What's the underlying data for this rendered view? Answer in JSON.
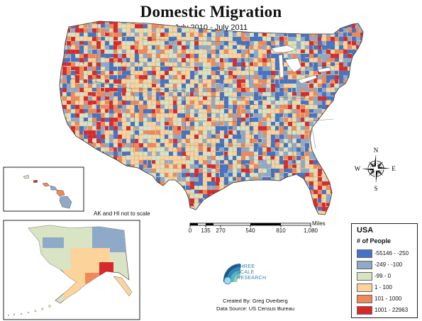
{
  "title": "Domestic Migration",
  "subtitle": "July 2010 - July 2011",
  "inset_note": "AK and HI not to scale",
  "scale": {
    "ticks": [
      "0",
      "135",
      "270",
      "540",
      "810",
      "1,080"
    ],
    "unit": "Miles"
  },
  "legend": {
    "title": "USA",
    "subtitle": "# of People",
    "items": [
      {
        "label": "-55146 - -250",
        "color": "#4472c4"
      },
      {
        "label": "-249 - -100",
        "color": "#8fa9c9"
      },
      {
        "label": "-99 - 0",
        "color": "#d8e4c4"
      },
      {
        "label": "1 - 100",
        "color": "#fbd39b"
      },
      {
        "label": "101 - 1000",
        "color": "#f08859"
      },
      {
        "label": "1001 - 22963",
        "color": "#d9282c"
      }
    ]
  },
  "compass": {
    "n": "N",
    "s": "S",
    "e": "E",
    "w": "W"
  },
  "credits": {
    "created_by": "Created By: Greg Overberg",
    "data_source": "Data Source: US Census Bureau"
  },
  "brand": {
    "line1": "THREE",
    "line2": "SCALE",
    "line3": "RESEARCH"
  },
  "icons": {
    "compass": "compass-rose-icon",
    "logo": "three-scale-research-logo-icon"
  }
}
